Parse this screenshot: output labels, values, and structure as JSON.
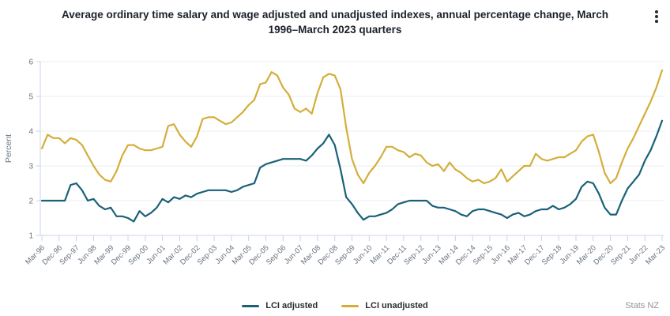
{
  "header": {
    "title_line1": "Average ordinary time salary and wage adjusted and unadjusted indexes, annual percentage change, March",
    "title_line2": "1996–March 2023 quarters",
    "menu_icon": "kebab-menu"
  },
  "footer": {
    "source": "Stats NZ"
  },
  "colors": {
    "adjusted": "#1a6178",
    "unadjusted": "#d4ae3a",
    "grid": "#e9ecf2",
    "axis": "#c9d3ea",
    "text_muted": "#68737f",
    "title_text": "#1a2129"
  },
  "chart_data": {
    "type": "line",
    "title": "Average ordinary time salary and wage adjusted and unadjusted indexes, annual percentage change, March 1996–March 2023 quarters",
    "xlabel": "",
    "ylabel": "Percent",
    "ylim": [
      1,
      6
    ],
    "yticks": [
      1,
      2,
      3,
      4,
      5,
      6
    ],
    "grid": "horizontal",
    "legend_position": "bottom-center",
    "x_unit": "quarterly, Mar-96 to Mar-23 (109 points)",
    "x_tick_every": 3,
    "x_tick_labels": [
      "Mar-96",
      "Dec-96",
      "Sep-97",
      "Jun-98",
      "Mar-99",
      "Dec-99",
      "Sep-00",
      "Jun-01",
      "Mar-02",
      "Dec-02",
      "Sep-03",
      "Jun-04",
      "Mar-05",
      "Dec-05",
      "Sep-06",
      "Jun-07",
      "Mar-08",
      "Dec-08",
      "Sep-09",
      "Jun-10",
      "Mar-11",
      "Dec-11",
      "Sep-12",
      "Jun-13",
      "Mar-14",
      "Dec-14",
      "Sep-15",
      "Jun-16",
      "Mar-17",
      "Dec-17",
      "Sep-18",
      "Jun-19",
      "Mar-20",
      "Dec-20",
      "Sep-21",
      "Jun-22",
      "Mar-23"
    ],
    "series": [
      {
        "name": "LCI adjusted",
        "color": "#1a6178",
        "values": [
          2.0,
          2.0,
          2.0,
          2.0,
          2.0,
          2.45,
          2.5,
          2.3,
          2.0,
          2.05,
          1.85,
          1.75,
          1.8,
          1.55,
          1.55,
          1.5,
          1.4,
          1.7,
          1.55,
          1.65,
          1.8,
          2.05,
          1.95,
          2.1,
          2.05,
          2.15,
          2.1,
          2.2,
          2.25,
          2.3,
          2.3,
          2.3,
          2.3,
          2.25,
          2.3,
          2.4,
          2.45,
          2.5,
          2.95,
          3.05,
          3.1,
          3.15,
          3.2,
          3.2,
          3.2,
          3.2,
          3.15,
          3.3,
          3.5,
          3.65,
          3.9,
          3.6,
          2.9,
          2.1,
          1.9,
          1.65,
          1.45,
          1.55,
          1.55,
          1.6,
          1.65,
          1.75,
          1.9,
          1.95,
          2.0,
          2.0,
          2.0,
          2.0,
          1.85,
          1.8,
          1.8,
          1.75,
          1.7,
          1.6,
          1.55,
          1.7,
          1.75,
          1.75,
          1.7,
          1.65,
          1.6,
          1.5,
          1.6,
          1.65,
          1.55,
          1.6,
          1.7,
          1.75,
          1.75,
          1.85,
          1.75,
          1.8,
          1.9,
          2.05,
          2.4,
          2.55,
          2.5,
          2.2,
          1.8,
          1.6,
          1.6,
          2.0,
          2.35,
          2.55,
          2.75,
          3.15,
          3.45,
          3.85,
          4.3
        ]
      },
      {
        "name": "LCI unadjusted",
        "color": "#d4ae3a",
        "values": [
          3.5,
          3.9,
          3.8,
          3.8,
          3.65,
          3.8,
          3.75,
          3.6,
          3.3,
          3.0,
          2.75,
          2.6,
          2.55,
          2.85,
          3.3,
          3.6,
          3.6,
          3.5,
          3.45,
          3.45,
          3.5,
          3.55,
          4.15,
          4.2,
          3.9,
          3.7,
          3.55,
          3.85,
          4.35,
          4.4,
          4.4,
          4.3,
          4.2,
          4.25,
          4.4,
          4.55,
          4.75,
          4.9,
          5.35,
          5.4,
          5.7,
          5.6,
          5.25,
          5.05,
          4.65,
          4.55,
          4.65,
          4.5,
          5.1,
          5.55,
          5.65,
          5.6,
          5.2,
          4.1,
          3.2,
          2.75,
          2.5,
          2.8,
          3.0,
          3.25,
          3.55,
          3.55,
          3.45,
          3.4,
          3.25,
          3.35,
          3.3,
          3.1,
          3.0,
          3.05,
          2.85,
          3.1,
          2.9,
          2.8,
          2.65,
          2.55,
          2.6,
          2.5,
          2.55,
          2.65,
          2.9,
          2.55,
          2.7,
          2.85,
          3.0,
          3.0,
          3.35,
          3.2,
          3.15,
          3.2,
          3.25,
          3.25,
          3.35,
          3.45,
          3.7,
          3.85,
          3.9,
          3.4,
          2.8,
          2.5,
          2.65,
          3.1,
          3.5,
          3.8,
          4.15,
          4.5,
          4.85,
          5.25,
          5.75
        ]
      }
    ]
  }
}
